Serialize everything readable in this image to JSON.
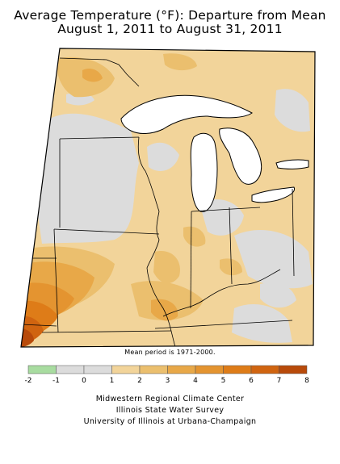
{
  "title_line1": "Average Temperature (°F): Departure from Mean",
  "title_line2": "August 1, 2011 to August 31, 2011",
  "mean_note": "Mean period is 1971-2000.",
  "legend": {
    "bins": [
      {
        "from": -2,
        "to": -1,
        "color": "#a8dca0"
      },
      {
        "from": -1,
        "to": 0,
        "color": "#dcdcdc"
      },
      {
        "from": 0,
        "to": 1,
        "color": "#dcdcdc"
      },
      {
        "from": 1,
        "to": 2,
        "color": "#f2d49a"
      },
      {
        "from": 2,
        "to": 3,
        "color": "#ebbf6e"
      },
      {
        "from": 3,
        "to": 4,
        "color": "#e8a848"
      },
      {
        "from": 4,
        "to": 5,
        "color": "#e49430"
      },
      {
        "from": 5,
        "to": 6,
        "color": "#de7c18"
      },
      {
        "from": 6,
        "to": 7,
        "color": "#d06410"
      },
      {
        "from": 7,
        "to": 8,
        "color": "#b84a0a"
      }
    ],
    "ticks": [
      "-2",
      "-1",
      "0",
      "1",
      "2",
      "3",
      "4",
      "5",
      "6",
      "7",
      "8"
    ]
  },
  "credits": [
    "Midwestern Regional Climate Center",
    "Illinois State Water Survey",
    "University of Illinois at Urbana-Champaign"
  ],
  "colors": {
    "lake": "#ffffff",
    "near_normal": "#dcdcdc",
    "outline": "#000000"
  }
}
